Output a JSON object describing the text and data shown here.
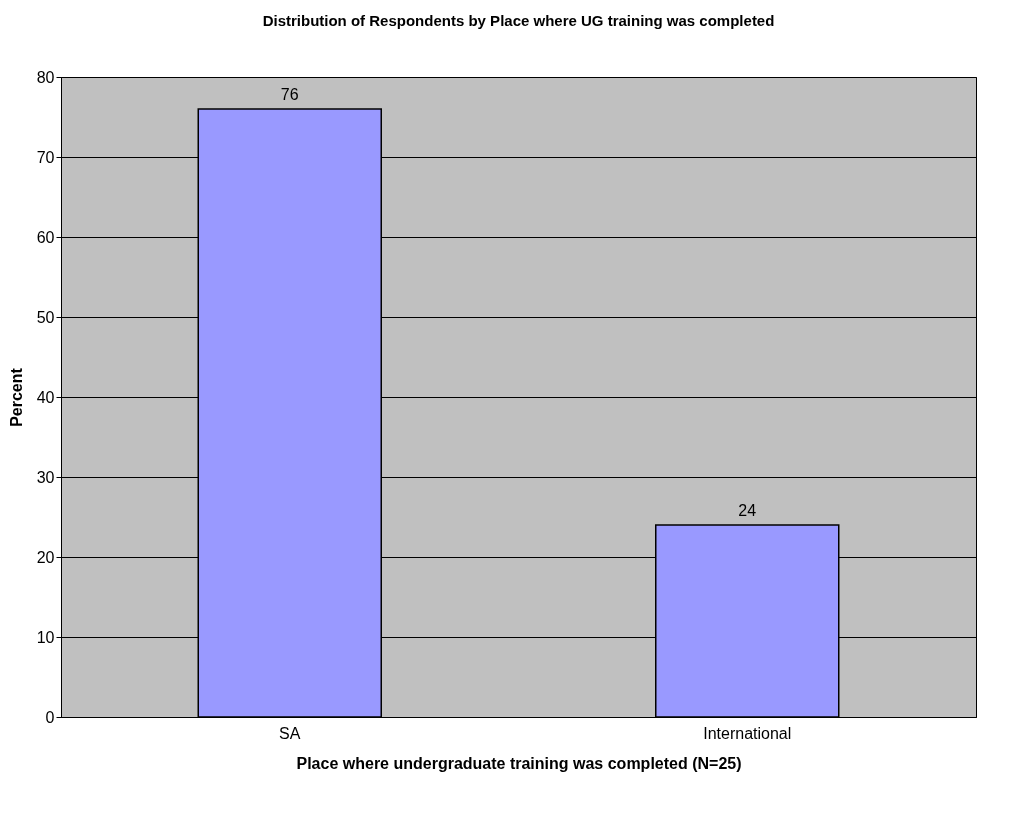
{
  "chart_data": {
    "type": "bar",
    "title": "Distribution of Respondents by Place where UG training was completed",
    "xlabel": "Place where undergraduate training was completed     (N=25)",
    "ylabel": "Percent",
    "categories": [
      "SA",
      "International"
    ],
    "values": [
      76,
      24
    ],
    "color": "#9999ff",
    "ylim": [
      0,
      80
    ],
    "yticks": [
      0,
      10,
      20,
      30,
      40,
      50,
      60,
      70,
      80
    ],
    "grid": "y",
    "data_labels": true
  }
}
